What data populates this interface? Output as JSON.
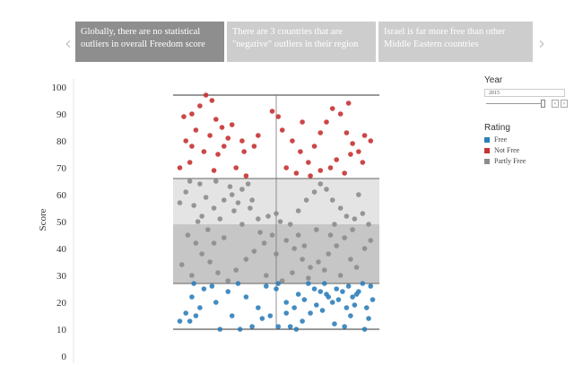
{
  "story": {
    "prev_icon": "chevron-left-icon",
    "next_icon": "chevron-right-icon",
    "prev_glyph": "‹",
    "next_glyph": "›",
    "points": [
      "Globally, there are no statistical outliers in overall Freedom score",
      "There are 3 countries that are \"negative\" outliers in their region",
      "Israel is far more free than other Middle Eastern countries"
    ],
    "active_index": 0
  },
  "filters": {
    "year_title": "Year",
    "year_value": "2015",
    "year_slider_position": 0.95,
    "rating_title": "Rating",
    "ratings": [
      {
        "label": "Free",
        "color": "#2f7fba"
      },
      {
        "label": "Not Free",
        "color": "#c73232"
      },
      {
        "label": "Partly Free",
        "color": "#8c8c8c"
      }
    ]
  },
  "chart_data": {
    "type": "scatter",
    "title": "",
    "ylabel": "Score",
    "xlabel": "",
    "ylim": [
      0,
      100
    ],
    "yticks": [
      0,
      10,
      20,
      30,
      40,
      50,
      60,
      70,
      80,
      90,
      100
    ],
    "grid": false,
    "legend": "right",
    "box": {
      "whisker_low": 10,
      "q1": 27,
      "median": 49,
      "q3": 66,
      "whisker_high": 97
    },
    "series": [
      {
        "name": "Free",
        "color": "#2f7fba",
        "points": [
          [
            0.09,
            27
          ],
          [
            0.31,
            27
          ],
          [
            0.14,
            25
          ],
          [
            0.26,
            24
          ],
          [
            0.08,
            22
          ],
          [
            0.12,
            18
          ],
          [
            0.05,
            16
          ],
          [
            0.1,
            15
          ],
          [
            0.07,
            13
          ],
          [
            0.22,
            10
          ],
          [
            0.32,
            10
          ],
          [
            0.38,
            11
          ],
          [
            0.47,
            15
          ],
          [
            0.43,
            14
          ],
          [
            0.41,
            18
          ],
          [
            0.5,
            25
          ],
          [
            0.51,
            27
          ],
          [
            0.55,
            20
          ],
          [
            0.57,
            11
          ],
          [
            0.6,
            10
          ],
          [
            0.63,
            13
          ],
          [
            0.59,
            18
          ],
          [
            0.64,
            21
          ],
          [
            0.66,
            27
          ],
          [
            0.69,
            25
          ],
          [
            0.7,
            19
          ],
          [
            0.72,
            24
          ],
          [
            0.74,
            27
          ],
          [
            0.76,
            22
          ],
          [
            0.78,
            20
          ],
          [
            0.8,
            25
          ],
          [
            0.81,
            21
          ],
          [
            0.83,
            24
          ],
          [
            0.85,
            18
          ],
          [
            0.86,
            26
          ],
          [
            0.88,
            22
          ],
          [
            0.89,
            19
          ],
          [
            0.91,
            24
          ],
          [
            0.93,
            27
          ],
          [
            0.95,
            18
          ],
          [
            0.97,
            26
          ],
          [
            0.98,
            21
          ],
          [
            0.55,
            16
          ],
          [
            0.67,
            16
          ],
          [
            0.84,
            11
          ],
          [
            0.94,
            10
          ],
          [
            0.79,
            12
          ],
          [
            0.73,
            17
          ],
          [
            0.87,
            15
          ],
          [
            0.61,
            23
          ],
          [
            0.02,
            13
          ],
          [
            0.2,
            20
          ],
          [
            0.45,
            26
          ],
          [
            0.35,
            22
          ],
          [
            0.28,
            15
          ],
          [
            0.51,
            11
          ],
          [
            0.96,
            14
          ],
          [
            0.18,
            26
          ],
          [
            0.9,
            23
          ],
          [
            0.75,
            23
          ]
        ]
      },
      {
        "name": "Not Free",
        "color": "#c73232",
        "points": [
          [
            0.15,
            97
          ],
          [
            0.18,
            95
          ],
          [
            0.12,
            93
          ],
          [
            0.08,
            90
          ],
          [
            0.04,
            89
          ],
          [
            0.2,
            88
          ],
          [
            0.23,
            85
          ],
          [
            0.28,
            86
          ],
          [
            0.1,
            84
          ],
          [
            0.17,
            82
          ],
          [
            0.26,
            81
          ],
          [
            0.33,
            80
          ],
          [
            0.41,
            82
          ],
          [
            0.39,
            78
          ],
          [
            0.34,
            76
          ],
          [
            0.24,
            78
          ],
          [
            0.21,
            75
          ],
          [
            0.05,
            80
          ],
          [
            0.08,
            78
          ],
          [
            0.14,
            76
          ],
          [
            0.02,
            70
          ],
          [
            0.07,
            72
          ],
          [
            0.19,
            69
          ],
          [
            0.3,
            70
          ],
          [
            0.35,
            67
          ],
          [
            0.48,
            91
          ],
          [
            0.51,
            89
          ],
          [
            0.53,
            84
          ],
          [
            0.58,
            80
          ],
          [
            0.62,
            76
          ],
          [
            0.66,
            72
          ],
          [
            0.69,
            78
          ],
          [
            0.72,
            83
          ],
          [
            0.75,
            87
          ],
          [
            0.78,
            92
          ],
          [
            0.82,
            90
          ],
          [
            0.85,
            83
          ],
          [
            0.88,
            79
          ],
          [
            0.91,
            76
          ],
          [
            0.94,
            82
          ],
          [
            0.97,
            80
          ],
          [
            0.87,
            75
          ],
          [
            0.8,
            73
          ],
          [
            0.67,
            67
          ],
          [
            0.72,
            69
          ],
          [
            0.6,
            68
          ],
          [
            0.93,
            72
          ],
          [
            0.77,
            70
          ],
          [
            0.55,
            70
          ],
          [
            0.84,
            68
          ],
          [
            0.63,
            87
          ],
          [
            0.86,
            94
          ]
        ]
      },
      {
        "name": "Partly Free",
        "color": "#8c8c8c",
        "points": [
          [
            0.07,
            65
          ],
          [
            0.12,
            64
          ],
          [
            0.2,
            65
          ],
          [
            0.27,
            63
          ],
          [
            0.33,
            62
          ],
          [
            0.05,
            61
          ],
          [
            0.15,
            59
          ],
          [
            0.24,
            58
          ],
          [
            0.31,
            57
          ],
          [
            0.09,
            56
          ],
          [
            0.19,
            55
          ],
          [
            0.13,
            52
          ],
          [
            0.22,
            51
          ],
          [
            0.29,
            54
          ],
          [
            0.37,
            55
          ],
          [
            0.41,
            51
          ],
          [
            0.46,
            52
          ],
          [
            0.5,
            53
          ],
          [
            0.52,
            50
          ],
          [
            0.57,
            49
          ],
          [
            0.61,
            54
          ],
          [
            0.65,
            58
          ],
          [
            0.69,
            61
          ],
          [
            0.72,
            64
          ],
          [
            0.75,
            62
          ],
          [
            0.78,
            58
          ],
          [
            0.82,
            55
          ],
          [
            0.85,
            52
          ],
          [
            0.89,
            51
          ],
          [
            0.93,
            53
          ],
          [
            0.96,
            49
          ],
          [
            0.88,
            47
          ],
          [
            0.84,
            44
          ],
          [
            0.8,
            41
          ],
          [
            0.76,
            38
          ],
          [
            0.71,
            35
          ],
          [
            0.67,
            33
          ],
          [
            0.63,
            36
          ],
          [
            0.59,
            40
          ],
          [
            0.55,
            43
          ],
          [
            0.48,
            45
          ],
          [
            0.44,
            42
          ],
          [
            0.39,
            39
          ],
          [
            0.35,
            36
          ],
          [
            0.3,
            32
          ],
          [
            0.26,
            28
          ],
          [
            0.21,
            31
          ],
          [
            0.17,
            35
          ],
          [
            0.13,
            38
          ],
          [
            0.1,
            42
          ],
          [
            0.06,
            45
          ],
          [
            0.03,
            34
          ],
          [
            0.08,
            30
          ],
          [
            0.16,
            47
          ],
          [
            0.24,
            44
          ],
          [
            0.33,
            49
          ],
          [
            0.42,
            46
          ],
          [
            0.5,
            38
          ],
          [
            0.58,
            31
          ],
          [
            0.66,
            29
          ],
          [
            0.74,
            32
          ],
          [
            0.82,
            30
          ],
          [
            0.9,
            33
          ],
          [
            0.94,
            40
          ],
          [
            0.97,
            43
          ],
          [
            0.61,
            45
          ],
          [
            0.7,
            47
          ],
          [
            0.79,
            49
          ],
          [
            0.87,
            36
          ],
          [
            0.53,
            28
          ],
          [
            0.45,
            30
          ],
          [
            0.36,
            64
          ],
          [
            0.28,
            60
          ],
          [
            0.11,
            50
          ],
          [
            0.02,
            57
          ],
          [
            0.91,
            60
          ],
          [
            0.77,
            45
          ],
          [
            0.64,
            41
          ],
          [
            0.38,
            58
          ],
          [
            0.19,
            42
          ]
        ]
      }
    ]
  }
}
